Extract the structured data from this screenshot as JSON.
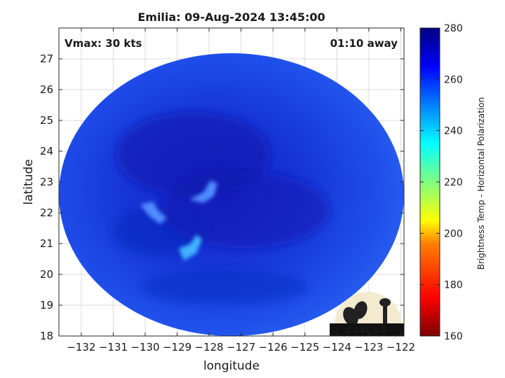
{
  "title": "Emilia: 09-Aug-2024 13:45:00",
  "vmax_label": "Vmax: 30 kts",
  "time_label": "01:10 away",
  "xlabel": "longitude",
  "ylabel": "latitude",
  "x_ticks": [
    -132,
    -131,
    -130,
    -129,
    -128,
    -127,
    -126,
    -125,
    -124,
    -123,
    -122
  ],
  "y_ticks": [
    18,
    19,
    20,
    21,
    22,
    23,
    24,
    25,
    26,
    27
  ],
  "xlim": [
    -132.7,
    -121.9
  ],
  "ylim": [
    18,
    28
  ],
  "colorbar": {
    "label": "Brightness Temp - Horizontal Polarization",
    "ticks": [
      160,
      180,
      200,
      220,
      240,
      260,
      280
    ],
    "range": [
      160,
      280
    ],
    "colors": [
      "#7f0000",
      "#ff0000",
      "#ff8000",
      "#ffff00",
      "#80ff80",
      "#00ffff",
      "#0080ff",
      "#0000ff",
      "#00007f"
    ]
  },
  "logo": {
    "text": "CIMSS"
  }
}
